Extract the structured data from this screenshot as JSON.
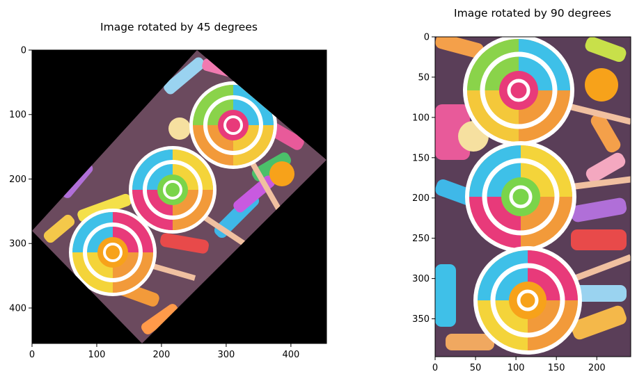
{
  "chart_data": [
    {
      "type": "image",
      "title": "Image rotated by 45 degrees",
      "xlim": [
        0,
        455
      ],
      "ylim": [
        455,
        0
      ],
      "xticks": [
        0,
        100,
        200,
        300,
        400
      ],
      "yticks": [
        0,
        100,
        200,
        300,
        400
      ],
      "content": "candy-lollipops-rotated-45"
    },
    {
      "type": "image",
      "title": "Image rotated by 90 degrees",
      "xlim": [
        0,
        242
      ],
      "ylim": [
        397,
        0
      ],
      "xticks": [
        0,
        50,
        100,
        150,
        200
      ],
      "yticks": [
        0,
        50,
        100,
        150,
        200,
        250,
        300,
        350
      ],
      "content": "candy-lollipops-rotated-90"
    }
  ]
}
